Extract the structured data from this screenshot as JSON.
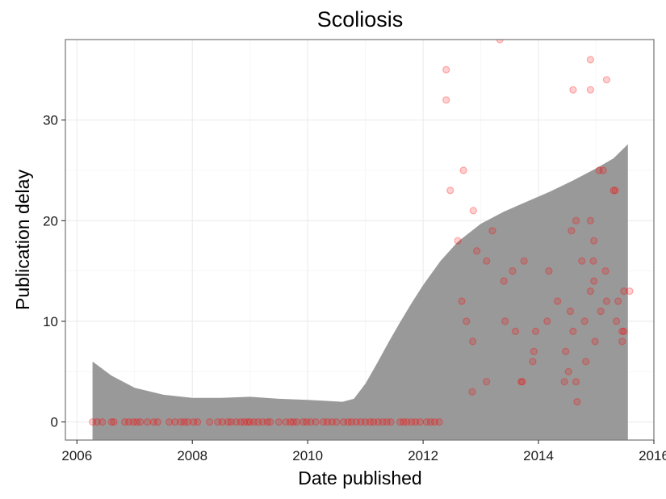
{
  "chart_data": {
    "type": "scatter",
    "title": "Scoliosis",
    "xlabel": "Date published",
    "ylabel": "Publication delay",
    "xlim": [
      2005.8,
      2016.0
    ],
    "ylim": [
      -1.8,
      38
    ],
    "x_ticks": [
      2006,
      2008,
      2010,
      2012,
      2014,
      2016
    ],
    "x_tick_labels": [
      "2006",
      "2008",
      "2010",
      "2012",
      "2014",
      "2016"
    ],
    "y_ticks": [
      0,
      10,
      20,
      30
    ],
    "y_tick_labels": [
      "0",
      "10",
      "20",
      "30"
    ],
    "grid": true,
    "legend": "none",
    "point_color": "#ff0000",
    "band_color": "#999999",
    "points": [
      {
        "x": 2006.27,
        "y": 0
      },
      {
        "x": 2006.35,
        "y": 0
      },
      {
        "x": 2006.44,
        "y": 0
      },
      {
        "x": 2006.6,
        "y": 0
      },
      {
        "x": 2006.64,
        "y": 0
      },
      {
        "x": 2006.83,
        "y": 0
      },
      {
        "x": 2006.9,
        "y": 0
      },
      {
        "x": 2006.98,
        "y": 0
      },
      {
        "x": 2007.04,
        "y": 0
      },
      {
        "x": 2007.1,
        "y": 0
      },
      {
        "x": 2007.22,
        "y": 0
      },
      {
        "x": 2007.33,
        "y": 0
      },
      {
        "x": 2007.4,
        "y": 0
      },
      {
        "x": 2007.6,
        "y": 0
      },
      {
        "x": 2007.7,
        "y": 0
      },
      {
        "x": 2007.8,
        "y": 0
      },
      {
        "x": 2007.86,
        "y": 0
      },
      {
        "x": 2007.92,
        "y": 0
      },
      {
        "x": 2008.02,
        "y": 0
      },
      {
        "x": 2008.09,
        "y": 0
      },
      {
        "x": 2008.3,
        "y": 0
      },
      {
        "x": 2008.44,
        "y": 0
      },
      {
        "x": 2008.52,
        "y": 0
      },
      {
        "x": 2008.62,
        "y": 0
      },
      {
        "x": 2008.67,
        "y": 0
      },
      {
        "x": 2008.76,
        "y": 0
      },
      {
        "x": 2008.84,
        "y": 0
      },
      {
        "x": 2008.9,
        "y": 0
      },
      {
        "x": 2008.96,
        "y": 0
      },
      {
        "x": 2009.0,
        "y": 0
      },
      {
        "x": 2009.07,
        "y": 0
      },
      {
        "x": 2009.14,
        "y": 0
      },
      {
        "x": 2009.22,
        "y": 0
      },
      {
        "x": 2009.3,
        "y": 0
      },
      {
        "x": 2009.35,
        "y": 0
      },
      {
        "x": 2009.5,
        "y": 0
      },
      {
        "x": 2009.62,
        "y": 0
      },
      {
        "x": 2009.7,
        "y": 0
      },
      {
        "x": 2009.75,
        "y": 0
      },
      {
        "x": 2009.81,
        "y": 0
      },
      {
        "x": 2009.92,
        "y": 0
      },
      {
        "x": 2009.98,
        "y": 0
      },
      {
        "x": 2010.05,
        "y": 0
      },
      {
        "x": 2010.14,
        "y": 0
      },
      {
        "x": 2010.27,
        "y": 0
      },
      {
        "x": 2010.34,
        "y": 0
      },
      {
        "x": 2010.42,
        "y": 0
      },
      {
        "x": 2010.5,
        "y": 0
      },
      {
        "x": 2010.62,
        "y": 0
      },
      {
        "x": 2010.7,
        "y": 0
      },
      {
        "x": 2010.76,
        "y": 0
      },
      {
        "x": 2010.84,
        "y": 0
      },
      {
        "x": 2010.92,
        "y": 0
      },
      {
        "x": 2011.0,
        "y": 0
      },
      {
        "x": 2011.08,
        "y": 0
      },
      {
        "x": 2011.14,
        "y": 0
      },
      {
        "x": 2011.22,
        "y": 0
      },
      {
        "x": 2011.3,
        "y": 0
      },
      {
        "x": 2011.37,
        "y": 0
      },
      {
        "x": 2011.44,
        "y": 0
      },
      {
        "x": 2011.6,
        "y": 0
      },
      {
        "x": 2011.66,
        "y": 0
      },
      {
        "x": 2011.72,
        "y": 0
      },
      {
        "x": 2011.8,
        "y": 0
      },
      {
        "x": 2011.87,
        "y": 0
      },
      {
        "x": 2011.95,
        "y": 0
      },
      {
        "x": 2012.06,
        "y": 0
      },
      {
        "x": 2012.13,
        "y": 0
      },
      {
        "x": 2012.2,
        "y": 0
      },
      {
        "x": 2012.28,
        "y": 0
      },
      {
        "x": 2012.4,
        "y": 35
      },
      {
        "x": 2012.4,
        "y": 32
      },
      {
        "x": 2012.47,
        "y": 23
      },
      {
        "x": 2012.6,
        "y": 18
      },
      {
        "x": 2012.67,
        "y": 12
      },
      {
        "x": 2012.7,
        "y": 25
      },
      {
        "x": 2012.75,
        "y": 10
      },
      {
        "x": 2012.85,
        "y": 3
      },
      {
        "x": 2012.86,
        "y": 8
      },
      {
        "x": 2012.87,
        "y": 21
      },
      {
        "x": 2012.93,
        "y": 17
      },
      {
        "x": 2013.1,
        "y": 4
      },
      {
        "x": 2013.1,
        "y": 16
      },
      {
        "x": 2013.2,
        "y": 19
      },
      {
        "x": 2013.33,
        "y": 38
      },
      {
        "x": 2013.4,
        "y": 14
      },
      {
        "x": 2013.42,
        "y": 10
      },
      {
        "x": 2013.55,
        "y": 15
      },
      {
        "x": 2013.6,
        "y": 9
      },
      {
        "x": 2013.7,
        "y": 4
      },
      {
        "x": 2013.72,
        "y": 4
      },
      {
        "x": 2013.75,
        "y": 16
      },
      {
        "x": 2013.9,
        "y": 6
      },
      {
        "x": 2013.92,
        "y": 7
      },
      {
        "x": 2013.95,
        "y": 9
      },
      {
        "x": 2014.15,
        "y": 10
      },
      {
        "x": 2014.18,
        "y": 15
      },
      {
        "x": 2014.33,
        "y": 12
      },
      {
        "x": 2014.45,
        "y": 4
      },
      {
        "x": 2014.47,
        "y": 7
      },
      {
        "x": 2014.52,
        "y": 5
      },
      {
        "x": 2014.55,
        "y": 11
      },
      {
        "x": 2014.57,
        "y": 19
      },
      {
        "x": 2014.6,
        "y": 9
      },
      {
        "x": 2014.6,
        "y": 33
      },
      {
        "x": 2014.65,
        "y": 20
      },
      {
        "x": 2014.65,
        "y": 4
      },
      {
        "x": 2014.67,
        "y": 2
      },
      {
        "x": 2014.75,
        "y": 16
      },
      {
        "x": 2014.8,
        "y": 10
      },
      {
        "x": 2014.82,
        "y": 6
      },
      {
        "x": 2014.9,
        "y": 13
      },
      {
        "x": 2014.9,
        "y": 20
      },
      {
        "x": 2014.9,
        "y": 33
      },
      {
        "x": 2014.9,
        "y": 36
      },
      {
        "x": 2014.95,
        "y": 16
      },
      {
        "x": 2014.96,
        "y": 18
      },
      {
        "x": 2014.96,
        "y": 14
      },
      {
        "x": 2014.98,
        "y": 8
      },
      {
        "x": 2015.05,
        "y": 25
      },
      {
        "x": 2015.08,
        "y": 11
      },
      {
        "x": 2015.12,
        "y": 25
      },
      {
        "x": 2015.16,
        "y": 15
      },
      {
        "x": 2015.18,
        "y": 12
      },
      {
        "x": 2015.18,
        "y": 34
      },
      {
        "x": 2015.3,
        "y": 23
      },
      {
        "x": 2015.33,
        "y": 23
      },
      {
        "x": 2015.35,
        "y": 10
      },
      {
        "x": 2015.38,
        "y": 12
      },
      {
        "x": 2015.45,
        "y": 8
      },
      {
        "x": 2015.45,
        "y": 9
      },
      {
        "x": 2015.48,
        "y": 9
      },
      {
        "x": 2015.48,
        "y": 13
      },
      {
        "x": 2015.58,
        "y": 13
      }
    ],
    "smooth_band": {
      "x": [
        2006.27,
        2006.6,
        2007.0,
        2007.5,
        2008.0,
        2008.5,
        2009.0,
        2009.5,
        2010.0,
        2010.3,
        2010.6,
        2010.8,
        2011.0,
        2011.2,
        2011.4,
        2011.6,
        2011.8,
        2012.0,
        2012.3,
        2012.6,
        2013.0,
        2013.4,
        2013.8,
        2014.2,
        2014.6,
        2015.0,
        2015.3,
        2015.55
      ],
      "upper": [
        6.0,
        4.6,
        3.4,
        2.7,
        2.4,
        2.4,
        2.5,
        2.3,
        2.2,
        2.1,
        2.0,
        2.3,
        3.8,
        5.8,
        7.9,
        9.9,
        11.8,
        13.6,
        16.0,
        17.9,
        19.7,
        20.9,
        21.9,
        22.9,
        24.0,
        25.2,
        26.2,
        27.6
      ],
      "lower": [
        -1.8,
        -1.8,
        -1.8,
        -1.8,
        -1.8,
        -1.8,
        -1.8,
        -1.8,
        -1.8,
        -1.8,
        -1.8,
        -1.8,
        -1.8,
        -1.8,
        -1.8,
        -1.8,
        -1.8,
        -1.8,
        -1.8,
        -1.8,
        -1.8,
        -1.8,
        -1.8,
        -1.8,
        -1.8,
        -1.8,
        -1.8,
        -1.8
      ]
    }
  }
}
